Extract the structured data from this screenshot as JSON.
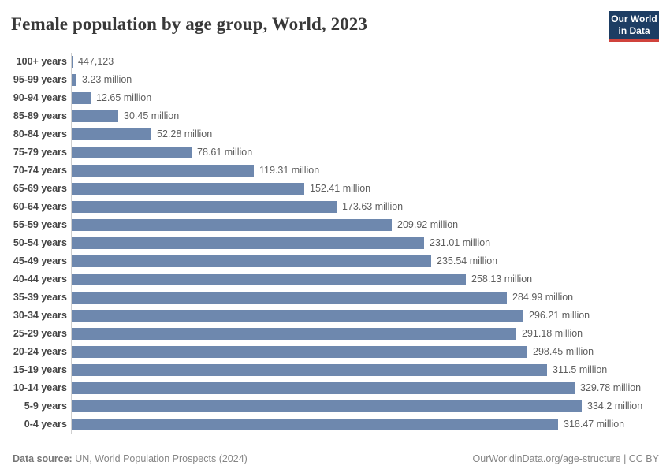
{
  "title": "Female population by age group, World, 2023",
  "logo": {
    "line1": "Our World",
    "line2": "in Data",
    "bg_color": "#1d3d63",
    "underline_color": "#d0433c"
  },
  "chart_data": {
    "type": "bar",
    "orientation": "horizontal",
    "title": "Female population by age group, World, 2023",
    "xlabel": "",
    "ylabel": "",
    "grid": false,
    "legend": "none",
    "bar_color": "#6e88ae",
    "axis_line_color": "#cfcfcf",
    "categories": [
      "100+ years",
      "95-99 years",
      "90-94 years",
      "85-89 years",
      "80-84 years",
      "75-79 years",
      "70-74 years",
      "65-69 years",
      "60-64 years",
      "55-59 years",
      "50-54 years",
      "45-49 years",
      "40-44 years",
      "35-39 years",
      "30-34 years",
      "25-29 years",
      "20-24 years",
      "15-19 years",
      "10-14 years",
      "5-9 years",
      "0-4 years"
    ],
    "values_millions": [
      0.447123,
      3.23,
      12.65,
      30.45,
      52.28,
      78.61,
      119.31,
      152.41,
      173.63,
      209.92,
      231.01,
      235.54,
      258.13,
      284.99,
      296.21,
      291.18,
      298.45,
      311.5,
      329.78,
      334.2,
      318.47
    ],
    "value_labels": [
      "447,123",
      "3.23 million",
      "12.65 million",
      "30.45 million",
      "52.28 million",
      "78.61 million",
      "119.31 million",
      "152.41 million",
      "173.63 million",
      "209.92 million",
      "231.01 million",
      "235.54 million",
      "258.13 million",
      "284.99 million",
      "296.21 million",
      "291.18 million",
      "298.45 million",
      "311.5 million",
      "329.78 million",
      "334.2 million",
      "318.47 million"
    ]
  },
  "footer": {
    "datasource_label": "Data source:",
    "datasource_value": " UN, World Population Prospects (2024)",
    "right_text": "OurWorldinData.org/age-structure | CC BY"
  }
}
